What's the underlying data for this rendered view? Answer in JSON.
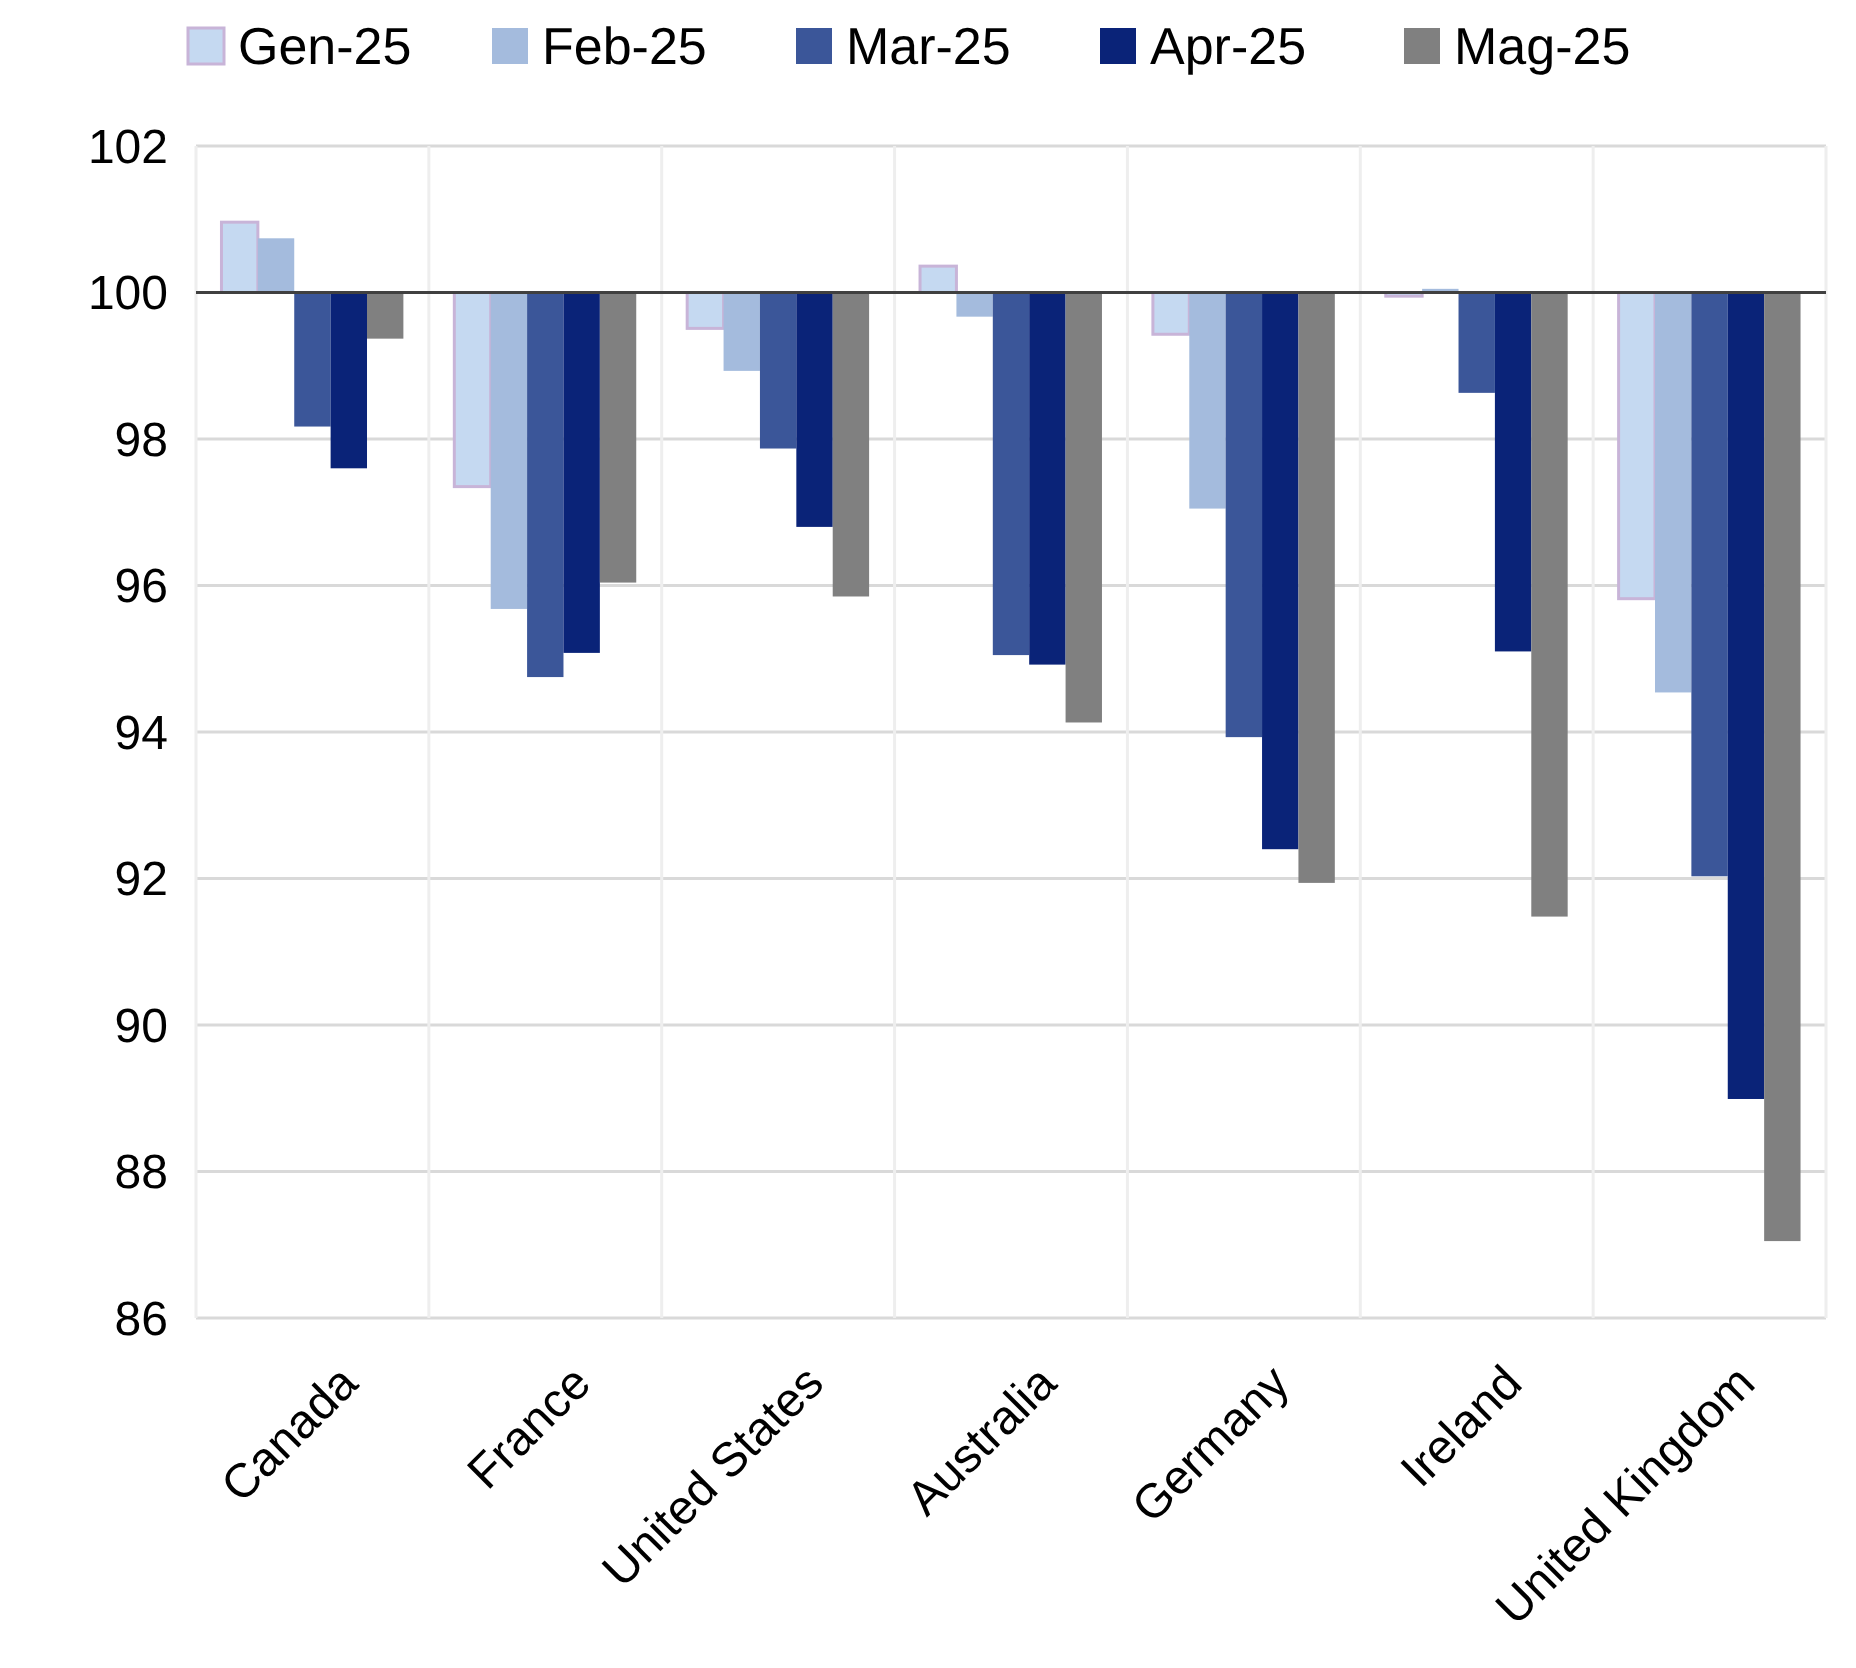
{
  "chart_data": {
    "type": "bar",
    "categories": [
      "Canada",
      "France",
      "United States",
      "Australia",
      "Germany",
      "Ireland",
      "United Kingdom"
    ],
    "series": [
      {
        "name": "Gen-25",
        "color": "#c5d9f1",
        "base": [
          100,
          100,
          100,
          100,
          100,
          100,
          100
        ],
        "values": [
          0.96,
          -2.65,
          -0.49,
          0.36,
          -0.57,
          -0.05,
          -4.18
        ]
      },
      {
        "name": "Feb-25",
        "color": "#a4bbdd",
        "base": [
          100,
          100,
          100,
          100,
          100,
          100,
          100
        ],
        "values": [
          0.74,
          -4.32,
          -1.07,
          -0.33,
          -2.95,
          0.05,
          -5.46
        ]
      },
      {
        "name": "Mar-25",
        "color": "#3b5699",
        "base": [
          100,
          100,
          100,
          100,
          100,
          100,
          100
        ],
        "values": [
          -1.83,
          -5.25,
          -2.13,
          -4.95,
          -6.07,
          -1.37,
          -7.97
        ]
      },
      {
        "name": "Apr-25",
        "color": "#0a2378",
        "base": [
          100,
          100,
          100,
          100,
          100,
          100,
          100
        ],
        "values": [
          -2.4,
          -4.92,
          -3.2,
          -5.08,
          -7.6,
          -4.9,
          -11.01
        ]
      },
      {
        "name": "Mag-25",
        "color": "#808080",
        "base": [
          100,
          100,
          100,
          100,
          100,
          100,
          100
        ],
        "values": [
          -0.63,
          -3.96,
          -4.15,
          -5.87,
          -8.06,
          -8.52,
          -12.95
        ]
      }
    ],
    "ref_lines": [
      {
        "axis": "y",
        "value": 100,
        "color": "#404040"
      }
    ],
    "ylim": [
      86,
      102
    ],
    "yticks": [
      86,
      88,
      90,
      92,
      94,
      96,
      98,
      100,
      102
    ],
    "grid": true,
    "legend": "top"
  }
}
